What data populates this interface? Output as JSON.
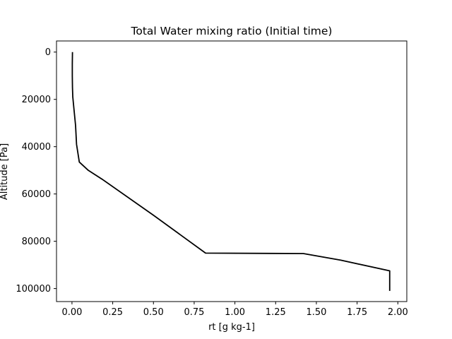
{
  "chart_data": {
    "type": "line",
    "title": "Total Water mixing ratio (Initial time)",
    "xlabel": "rt [g kg-1]",
    "ylabel": "Altitude [Pa]",
    "xlim": [
      -0.095,
      2.055
    ],
    "ylim": [
      105500,
      -4700
    ],
    "y_inverted": true,
    "grid": false,
    "legend": "none",
    "xticks": [
      0.0,
      0.25,
      0.5,
      0.75,
      1.0,
      1.25,
      1.5,
      1.75,
      2.0
    ],
    "xtick_labels": [
      "0.00",
      "0.25",
      "0.50",
      "0.75",
      "1.00",
      "1.25",
      "1.50",
      "1.75",
      "2.00"
    ],
    "yticks": [
      0,
      20000,
      40000,
      60000,
      80000,
      100000
    ],
    "ytick_labels": [
      "0",
      "20000",
      "40000",
      "60000",
      "80000",
      "100000"
    ],
    "series": [
      {
        "color": "#000000",
        "x": [
          0.003,
          0.002,
          0.002,
          0.003,
          0.005,
          0.012,
          0.022,
          0.028,
          0.045,
          0.1,
          0.19,
          0.5,
          0.82,
          1.42,
          1.65,
          1.95,
          1.95
        ],
        "y": [
          0,
          5000,
          10000,
          15000,
          19000,
          24000,
          31000,
          39000,
          46500,
          50000,
          54000,
          69000,
          85000,
          85200,
          88000,
          92500,
          101000
        ]
      }
    ]
  }
}
